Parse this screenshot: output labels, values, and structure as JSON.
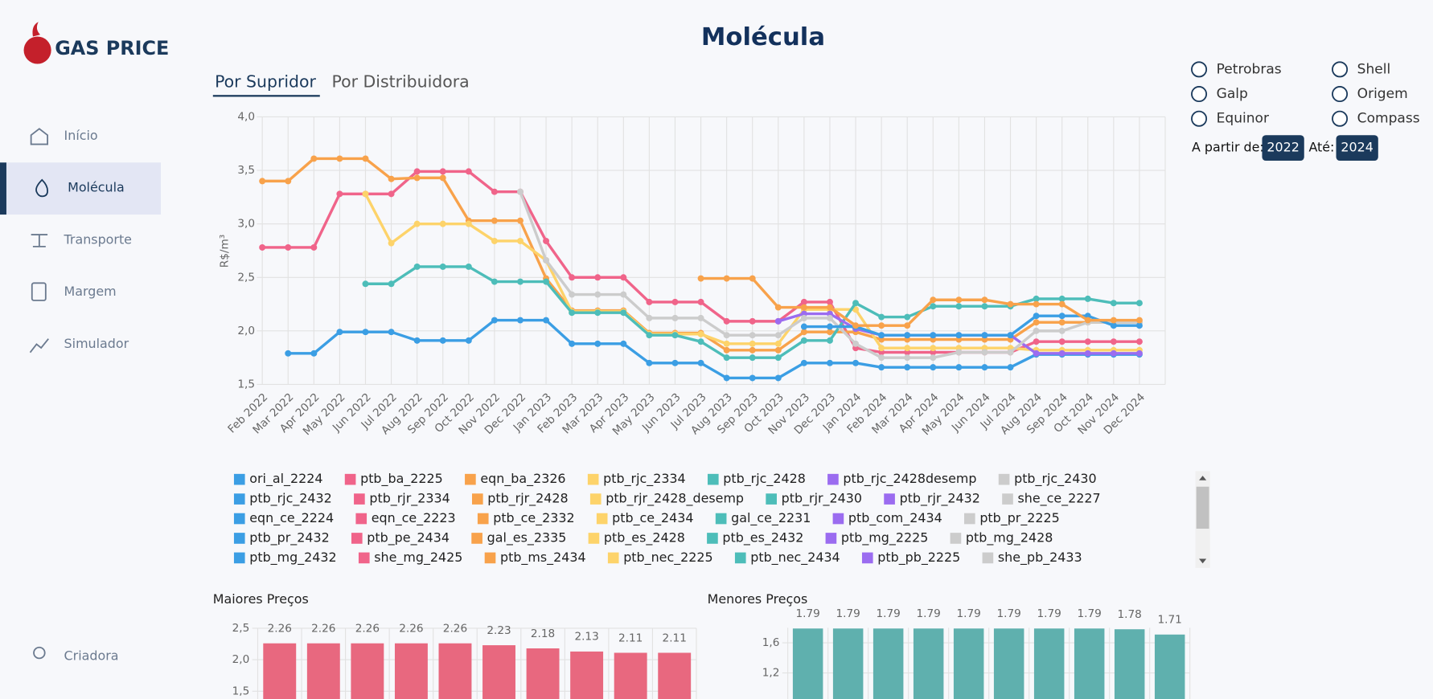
{
  "header": {
    "logo": "GAS PRICE",
    "title": "Molécula"
  },
  "nav": {
    "items": [
      "Início",
      "Molécula",
      "Transporte",
      "Margem",
      "Simulador"
    ],
    "active": 1,
    "footer": "Criadora"
  },
  "tabs": {
    "items": [
      "Por Supridor",
      "Por Distribuidora"
    ],
    "active": 0
  },
  "filters": {
    "options": [
      "Petrobras",
      "Shell",
      "Galp",
      "Origem",
      "Equinor",
      "Compass"
    ],
    "from_label": "A partir de:",
    "from_value": 2022,
    "to_label": "Até:",
    "to_value": 2024
  },
  "chart_data": [
    {
      "type": "line",
      "y_label": "R$/m³",
      "categories": [
        "Feb 2022",
        "Mar 2022",
        "Apr 2022",
        "May 2022",
        "Jun 2022",
        "Jul 2022",
        "Aug 2022",
        "Sep 2022",
        "Oct 2022",
        "Nov 2022",
        "Dec 2022",
        "Jan 2023",
        "Feb 2023",
        "Mar 2023",
        "Apr 2023",
        "May 2023",
        "Jun 2023",
        "Jul 2023",
        "Aug 2023",
        "Sep 2023",
        "Oct 2023",
        "Nov 2023",
        "Dec 2023",
        "Jan 2024",
        "Feb 2024",
        "Mar 2024",
        "Apr 2024",
        "May 2024",
        "Jun 2024",
        "Jul 2024",
        "Aug 2024",
        "Sep 2024",
        "Oct 2024",
        "Nov 2024",
        "Dec 2024"
      ],
      "ylim": [
        1.5,
        4.0
      ],
      "yticks": [
        {
          "value": 1.5,
          "label": "1,5"
        },
        {
          "value": 2.0,
          "label": "2,0"
        },
        {
          "value": 2.5,
          "label": "2,5"
        },
        {
          "value": 3.0,
          "label": "3,0"
        },
        {
          "value": 3.5,
          "label": "3,5"
        },
        {
          "value": 4.0,
          "label": "4,0"
        }
      ],
      "grid": true,
      "series": [
        {
          "name": "ori_al_2224",
          "color": "#3b9ee4",
          "values": [
            null,
            1.79,
            1.79,
            1.99,
            1.99,
            1.99,
            1.91,
            1.91,
            1.91,
            2.1,
            2.1,
            2.1,
            1.88,
            1.88,
            1.88,
            1.7,
            1.7,
            1.7,
            1.56,
            1.56,
            1.56,
            1.7,
            1.7,
            1.7,
            1.66,
            1.66,
            1.66,
            1.66,
            1.66,
            1.66,
            1.78,
            1.78,
            1.78,
            1.78,
            1.78
          ]
        },
        {
          "name": "ptb_ba_2225",
          "color": "#f0648a",
          "values": [
            2.78,
            2.78,
            2.78,
            3.28,
            3.28,
            3.28,
            3.49,
            3.49,
            3.49,
            3.3,
            3.3,
            2.84,
            2.5,
            2.5,
            2.5,
            2.27,
            2.27,
            2.27,
            2.09,
            2.09,
            2.09,
            2.27,
            2.27,
            1.84,
            1.8,
            1.8,
            1.8,
            1.8,
            1.8,
            1.8,
            1.9,
            1.9,
            1.9,
            1.9,
            1.9
          ]
        },
        {
          "name": "eqn_ba_2326",
          "color": "#f8a24b",
          "values": [
            3.4,
            3.4,
            3.61,
            3.61,
            3.61,
            3.42,
            3.43,
            3.43,
            3.03,
            3.03,
            3.03,
            2.49,
            2.19,
            2.19,
            2.19,
            1.98,
            1.98,
            1.98,
            1.82,
            1.82,
            1.82,
            1.99,
            1.99,
            1.99,
            1.92,
            1.92,
            1.92,
            1.92,
            1.92,
            1.92,
            2.08,
            2.08,
            2.08,
            2.08,
            2.08
          ]
        },
        {
          "name": "ptb_rjc_2334",
          "color": "#fdd36a",
          "values": [
            null,
            null,
            null,
            null,
            3.28,
            2.82,
            3.0,
            3.0,
            3.0,
            2.84,
            2.84,
            2.66,
            2.18,
            2.18,
            2.18,
            1.97,
            1.97,
            1.97,
            1.88,
            1.88,
            1.88,
            2.2,
            2.2,
            2.2,
            1.84,
            1.84,
            1.84,
            1.84,
            1.84,
            1.84,
            1.82,
            1.82,
            1.82,
            1.82,
            1.82
          ]
        },
        {
          "name": "ptb_rjc_2428",
          "color": "#4dbdb9",
          "values": [
            null,
            null,
            null,
            null,
            2.44,
            2.44,
            2.6,
            2.6,
            2.6,
            2.46,
            2.46,
            2.46,
            2.17,
            2.17,
            2.17,
            1.96,
            1.96,
            1.9,
            1.75,
            1.75,
            1.75,
            1.91,
            1.91,
            2.26,
            2.13,
            2.13,
            2.23,
            2.23,
            2.23,
            2.23,
            2.3,
            2.3,
            2.3,
            2.26,
            2.26
          ]
        },
        {
          "name": "ptb_rjc_2428desemp",
          "color": "#9b6cf0",
          "values": [
            null,
            null,
            null,
            null,
            null,
            null,
            null,
            null,
            null,
            null,
            null,
            null,
            null,
            null,
            null,
            null,
            null,
            null,
            null,
            null,
            2.09,
            2.16,
            2.16,
            2.02,
            1.96,
            1.96,
            1.96,
            1.96,
            1.96,
            1.96,
            1.79,
            1.79,
            1.79,
            1.79,
            1.79
          ]
        },
        {
          "name": "ptb_rjc_2430",
          "color": "#cccccc",
          "values": [
            null,
            null,
            null,
            null,
            null,
            null,
            null,
            null,
            null,
            null,
            3.3,
            2.66,
            2.34,
            2.34,
            2.34,
            2.12,
            2.12,
            2.12,
            1.96,
            1.96,
            1.96,
            2.12,
            2.12,
            1.88,
            1.75,
            1.75,
            1.75,
            1.8,
            1.8,
            1.8,
            2.0,
            2.0,
            2.08,
            2.08,
            2.08
          ]
        },
        {
          "name": "ptb_rjc_2432",
          "color": "#3b9ee4",
          "values": [
            null,
            null,
            null,
            null,
            null,
            null,
            null,
            null,
            null,
            null,
            null,
            null,
            null,
            null,
            null,
            null,
            null,
            null,
            null,
            null,
            null,
            2.04,
            2.04,
            2.04,
            1.96,
            1.96,
            1.96,
            1.96,
            1.96,
            1.96,
            2.14,
            2.14,
            2.14,
            2.05,
            2.05
          ]
        },
        {
          "name": "ptb_rjr_2334",
          "color": "#f0648a"
        },
        {
          "name": "ptb_rjr_2428",
          "color": "#f8a24b",
          "values": [
            null,
            null,
            null,
            null,
            null,
            null,
            null,
            null,
            null,
            null,
            null,
            null,
            null,
            null,
            null,
            null,
            null,
            2.49,
            2.49,
            2.49,
            2.22,
            2.22,
            2.22,
            2.05,
            2.05,
            2.05,
            2.29,
            2.29,
            2.29,
            2.25,
            2.25,
            2.25,
            2.1,
            2.1,
            2.1
          ]
        },
        {
          "name": "ptb_rjr_2428_desemp",
          "color": "#fdd36a"
        },
        {
          "name": "ptb_rjr_2430",
          "color": "#4dbdb9"
        },
        {
          "name": "ptb_rjr_2432",
          "color": "#9b6cf0"
        },
        {
          "name": "she_ce_2227",
          "color": "#cccccc"
        },
        {
          "name": "eqn_ce_2224",
          "color": "#3b9ee4"
        },
        {
          "name": "eqn_ce_2223",
          "color": "#f0648a"
        },
        {
          "name": "ptb_ce_2332",
          "color": "#f8a24b"
        },
        {
          "name": "ptb_ce_2434",
          "color": "#fdd36a"
        },
        {
          "name": "gal_ce_2231",
          "color": "#4dbdb9"
        },
        {
          "name": "ptb_com_2434",
          "color": "#9b6cf0"
        },
        {
          "name": "ptb_pr_2225",
          "color": "#cccccc"
        },
        {
          "name": "ptb_pr_2432",
          "color": "#3b9ee4"
        },
        {
          "name": "ptb_pe_2434",
          "color": "#f0648a"
        },
        {
          "name": "gal_es_2335",
          "color": "#f8a24b"
        },
        {
          "name": "ptb_es_2428",
          "color": "#fdd36a"
        },
        {
          "name": "ptb_es_2432",
          "color": "#4dbdb9"
        },
        {
          "name": "ptb_mg_2225",
          "color": "#9b6cf0"
        },
        {
          "name": "ptb_mg_2428",
          "color": "#cccccc"
        },
        {
          "name": "ptb_mg_2432",
          "color": "#3b9ee4"
        },
        {
          "name": "she_mg_2425",
          "color": "#f0648a"
        },
        {
          "name": "ptb_ms_2434",
          "color": "#f8a24b"
        },
        {
          "name": "ptb_nec_2225",
          "color": "#fdd36a"
        },
        {
          "name": "ptb_nec_2434",
          "color": "#4dbdb9"
        },
        {
          "name": "ptb_pb_2225",
          "color": "#9b6cf0"
        },
        {
          "name": "she_pb_2433",
          "color": "#cccccc"
        }
      ]
    },
    {
      "type": "bar",
      "title": "Maiores Preços",
      "color": "#e8687f",
      "values": [
        2.26,
        2.26,
        2.26,
        2.26,
        2.26,
        2.23,
        2.18,
        2.13,
        2.11,
        2.11
      ],
      "ylim": [
        1.0,
        2.5
      ],
      "yticks": [
        {
          "value": 1.5,
          "label": "1,5"
        },
        {
          "value": 2.0,
          "label": "2,0"
        },
        {
          "value": 2.5,
          "label": "2,5"
        }
      ],
      "grid": true
    },
    {
      "type": "bar",
      "title": "Menores Preços",
      "color": "#5fb0ae",
      "values": [
        1.79,
        1.79,
        1.79,
        1.79,
        1.79,
        1.79,
        1.79,
        1.79,
        1.78,
        1.71
      ],
      "ylim": [
        0.8,
        1.8
      ],
      "yticks": [
        {
          "value": 1.2,
          "label": "1,2"
        },
        {
          "value": 1.6,
          "label": "1,6"
        }
      ],
      "grid": true
    }
  ]
}
